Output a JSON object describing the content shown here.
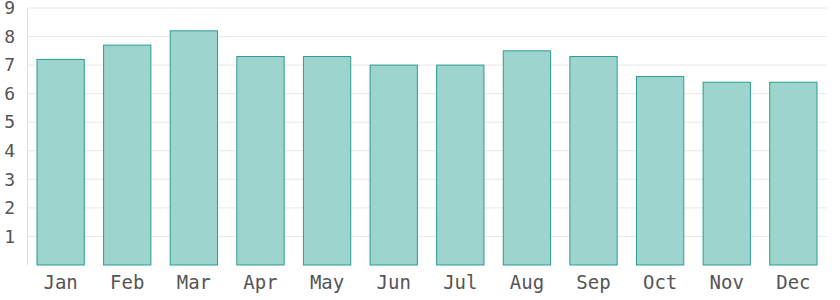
{
  "chart_data": {
    "type": "bar",
    "categories": [
      "Jan",
      "Feb",
      "Mar",
      "Apr",
      "May",
      "Jun",
      "Jul",
      "Aug",
      "Sep",
      "Oct",
      "Nov",
      "Dec"
    ],
    "values": [
      7.2,
      7.7,
      8.2,
      7.3,
      7.3,
      7.0,
      7.0,
      7.5,
      7.3,
      6.6,
      6.4,
      6.4
    ],
    "color": "#9dd5ce",
    "ylim": [
      0,
      9
    ],
    "yticks": [
      1,
      2,
      3,
      4,
      5,
      6,
      7,
      8,
      9
    ],
    "grid": true
  }
}
